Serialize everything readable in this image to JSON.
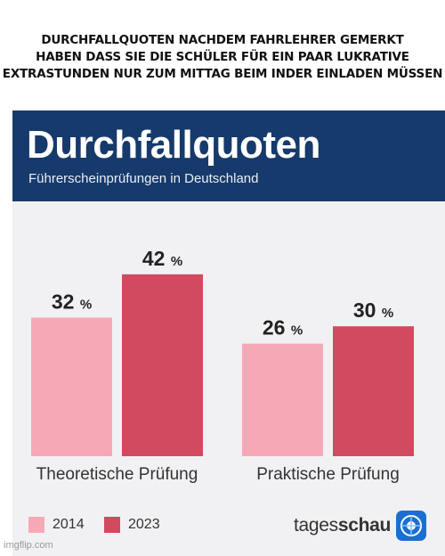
{
  "meme": {
    "caption_lines": [
      "DURCHFALLQUOTEN NACHDEM FAHRLEHRER GEMERKT",
      "HABEN DASS SIE DIE SCHÜLER FÜR EIN PAAR LUKRATIVE",
      "EXTRASTUNDEN NUR ZUM MITTAG BEIM INDER EINLADEN MÜSSEN"
    ]
  },
  "colors": {
    "banner": "#163a6b",
    "series_2014": "#f7a8b6",
    "series_2023": "#d14a5f",
    "background": "#f1f1f3"
  },
  "chart_data": {
    "type": "bar",
    "title": "Durchfallquoten",
    "subtitle": "Führerscheinprüfungen in Deutschland",
    "categories": [
      "Theoretische Prüfung",
      "Praktische Prüfung"
    ],
    "series": [
      {
        "name": "2014",
        "values": [
          32,
          26
        ],
        "color": "#f7a8b6"
      },
      {
        "name": "2023",
        "values": [
          42,
          30
        ],
        "color": "#d14a5f"
      }
    ],
    "unit": "%",
    "legend_position": "bottom-left"
  },
  "brand": {
    "light": "tages",
    "bold": "schau"
  },
  "watermark": "imgflip.com"
}
